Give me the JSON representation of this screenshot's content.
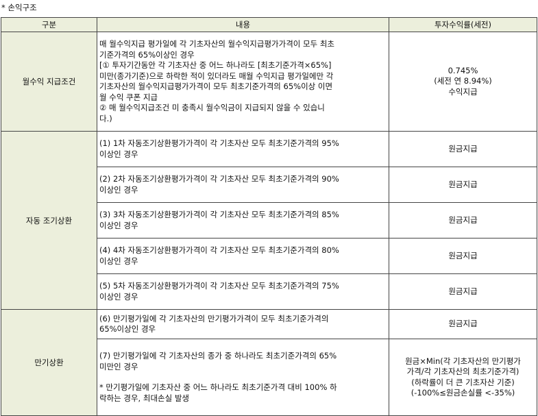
{
  "caption": "* 손익구조",
  "headers": [
    "구분",
    "내용",
    "투자수익률(세전)"
  ],
  "monthly": {
    "category": "월수익 지급조건",
    "content": [
      "매 월수익지급 평가일에 각 기초자산의 월수익지급평가가격이 모두 최초",
      "기준가격의 65%이상인 경우",
      "[① 투자기간동안 각 기초자산 중 어느 하나라도 [최초기준가격×65%]",
      "미만(종가기준)으로 하락한 적이 있더라도 매월 수익지급 평가일에만 각",
      "기초자산의 월수익지급평가가격이 모두 최초기준가격의 65%이상 이면",
      "월 수익 쿠폰 지급",
      "② 매 월수익지급조건 미 충족시 월수익금이 지급되지 않을 수 있습니",
      "다.)"
    ],
    "rate": [
      "0.745%",
      "(세전 연 8.94%)",
      "수익지급"
    ]
  },
  "autocall": {
    "category": "자동 조기상환",
    "rows": [
      {
        "content": [
          "(1) 1차 자동조기상환평가가격이 각 기초자산 모두 최초기준가격의 95%",
          "이상인 경우"
        ],
        "rate": "원금지급"
      },
      {
        "content": [
          "(2) 2차 자동조기상환평가가격이 각 기초자산 모두 최초기준가격의 90%",
          "이상인 경우"
        ],
        "rate": "원금지급"
      },
      {
        "content": [
          "(3) 3차 자동조기상환평가가격이 각 기초자산 모두 최초기준가격의 85%",
          "이상인 경우"
        ],
        "rate": "원금지급"
      },
      {
        "content": [
          "(4) 4차 자동조기상환평가가격이 각 기초자산 모두 최초기준가격의 80%",
          "이상인 경우"
        ],
        "rate": "원금지급"
      },
      {
        "content": [
          "(5) 5차 자동조기상환평가가격이 각 기초자산 모두 최초기준가격의 75%",
          "이상인 경우"
        ],
        "rate": "원금지급"
      }
    ]
  },
  "maturity": {
    "category": "만기상환",
    "row6": {
      "content": [
        "(6) 만기평가일에 각 기초자산의 만기평가가격이 모두 최초기준가격의",
        "65%이상인 경우"
      ],
      "rate": "원금지급"
    },
    "row7": {
      "content": [
        "(7) 만기평가일에 각 기초자산의 종가 중 하나라도 최초기준가격의 65%",
        "미만인 경우"
      ],
      "note": [
        "* 만기평가일에 기초자산 중 어느 하나라도 최초기준가격 대비 100% 하",
        "락하는 경우, 최대손실 발생"
      ],
      "rate": [
        "원금×Min(각 기초자산의 만기평가",
        "가격/각 기초자산의 최초기준가격)",
        "(하락률이 더 큰 기초자산 기준)",
        "(-100%≤원금손실률 <-35%)"
      ]
    }
  }
}
